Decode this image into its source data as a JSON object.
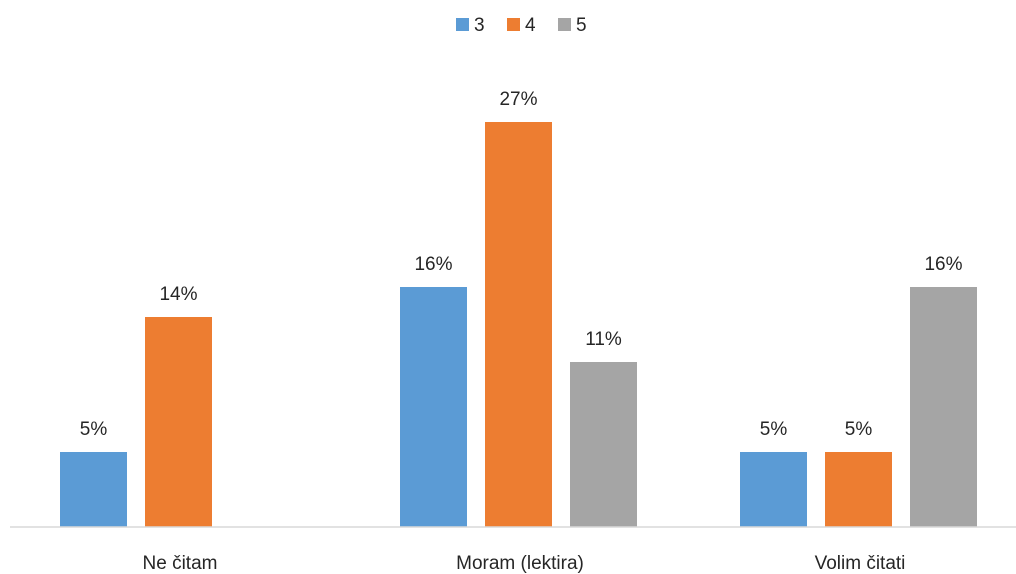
{
  "chart_data": {
    "type": "bar",
    "title": "",
    "xlabel": "",
    "ylabel": "",
    "ylim": [
      0,
      30
    ],
    "grid": false,
    "legend": "top-center",
    "categories": [
      "Ne čitam",
      "Moram (lektira)",
      "Volim čitati"
    ],
    "series": [
      {
        "name": "3",
        "color": "#5B9BD5",
        "values": [
          5,
          16,
          5
        ],
        "labels": [
          "5%",
          "16%",
          "5%"
        ]
      },
      {
        "name": "4",
        "color": "#ED7D31",
        "values": [
          14,
          27,
          5
        ],
        "labels": [
          "14%",
          "27%",
          "5%"
        ]
      },
      {
        "name": "5",
        "color": "#A5A5A5",
        "values": [
          null,
          11,
          16
        ],
        "labels": [
          null,
          "11%",
          "16%"
        ]
      }
    ]
  }
}
